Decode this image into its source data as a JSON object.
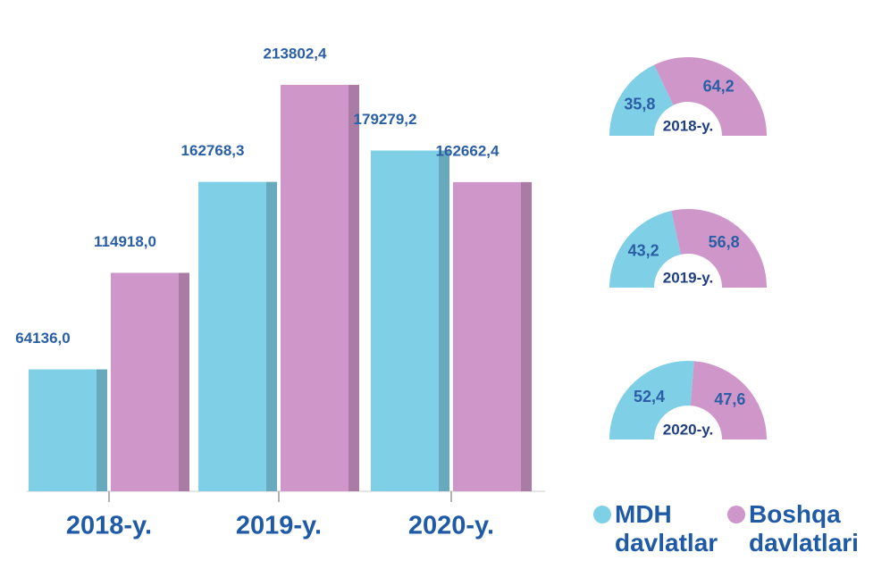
{
  "chart_data": [
    {
      "type": "bar",
      "categories": [
        "2018-y.",
        "2019-y.",
        "2020-y."
      ],
      "series": [
        {
          "name": "MDH davlatlar",
          "color": "#7fcfe6",
          "values": [
            64136.0,
            162768.3,
            179279.2
          ],
          "value_labels": [
            "64136,0",
            "162768,3",
            "179279,2"
          ]
        },
        {
          "name": "Boshqa davlatlari",
          "color": "#cf96c9",
          "values": [
            114918.0,
            213802.4,
            162662.4
          ],
          "value_labels": [
            "114918,0",
            "213802,4",
            "162662,4"
          ]
        }
      ],
      "ylim": [
        0,
        250000
      ]
    },
    {
      "type": "donut",
      "label": "2018-y.",
      "values": [
        35.8,
        64.2
      ],
      "value_labels": [
        "35,8",
        "64,2"
      ],
      "colors": [
        "#7fcfe6",
        "#cf96c9"
      ]
    },
    {
      "type": "donut",
      "label": "2019-y.",
      "values": [
        43.2,
        56.8
      ],
      "value_labels": [
        "43,2",
        "56,8"
      ],
      "colors": [
        "#7fcfe6",
        "#cf96c9"
      ]
    },
    {
      "type": "donut",
      "label": "2020-y.",
      "values": [
        52.4,
        47.6
      ],
      "value_labels": [
        "52,4",
        "47,6"
      ],
      "colors": [
        "#7fcfe6",
        "#cf96c9"
      ]
    }
  ]
}
